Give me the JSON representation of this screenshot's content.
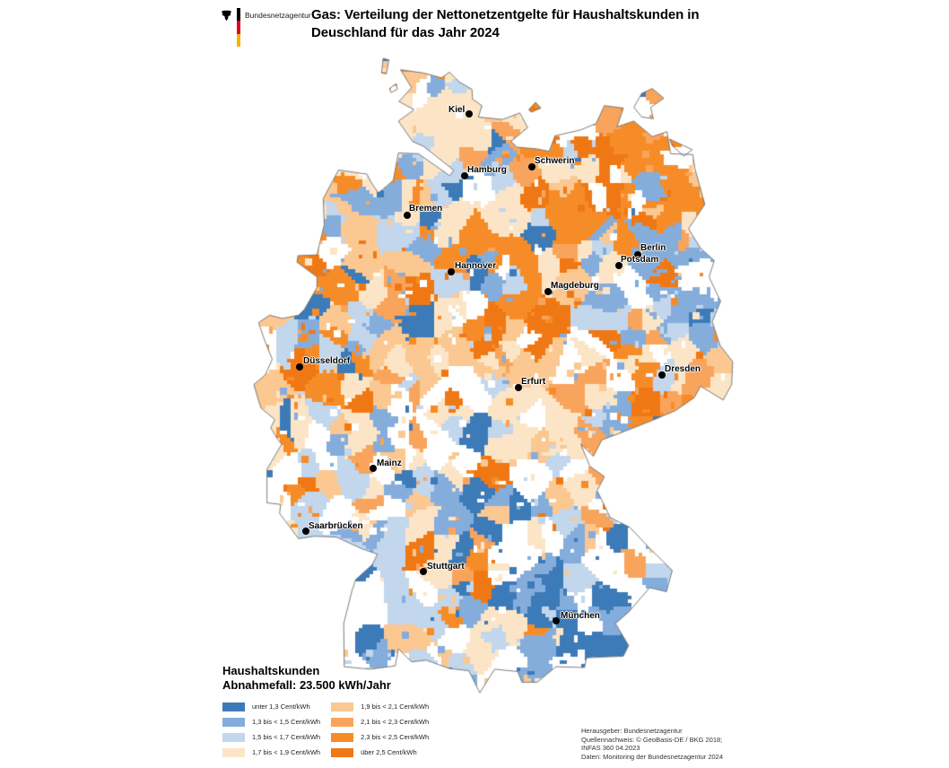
{
  "header": {
    "logo_text": "Bundesnetzagentur",
    "title_line1": "Gas: Verteilung der Nettonetzentgelte für Haushaltskunden in",
    "title_line2": "Deuschland für das Jahr 2024"
  },
  "logo_colors": {
    "black": "#000000",
    "red": "#E2001A",
    "gold": "#F9B200"
  },
  "map": {
    "cities": [
      {
        "name": "Kiel",
        "dot": [
          523,
          127
        ],
        "label": [
          500,
          117
        ]
      },
      {
        "name": "Hamburg",
        "dot": [
          518,
          196
        ],
        "label": [
          521,
          184
        ]
      },
      {
        "name": "Schwerin",
        "dot": [
          593,
          186
        ],
        "label": [
          596,
          174
        ]
      },
      {
        "name": "Bremen",
        "dot": [
          454,
          240
        ],
        "label": [
          456,
          227
        ]
      },
      {
        "name": "Berlin",
        "dot": [
          711,
          284
        ],
        "label": [
          714,
          271
        ]
      },
      {
        "name": "Potsdam",
        "dot": [
          690,
          296
        ],
        "label": [
          692,
          284
        ]
      },
      {
        "name": "Hannover",
        "dot": [
          503,
          303
        ],
        "label": [
          507,
          291
        ]
      },
      {
        "name": "Magdeburg",
        "dot": [
          611,
          325
        ],
        "label": [
          614,
          313
        ]
      },
      {
        "name": "Düsseldorf",
        "dot": [
          334,
          409
        ],
        "label": [
          338,
          397
        ]
      },
      {
        "name": "Dresden",
        "dot": [
          738,
          418
        ],
        "label": [
          741,
          406
        ]
      },
      {
        "name": "Erfurt",
        "dot": [
          578,
          432
        ],
        "label": [
          581,
          420
        ]
      },
      {
        "name": "Mainz",
        "dot": [
          416,
          522
        ],
        "label": [
          420,
          511
        ]
      },
      {
        "name": "Saarbrücken",
        "dot": [
          341,
          592
        ],
        "label": [
          344,
          581
        ]
      },
      {
        "name": "Stuttgart",
        "dot": [
          472,
          637
        ],
        "label": [
          476,
          626
        ]
      },
      {
        "name": "München",
        "dot": [
          620,
          692
        ],
        "label": [
          625,
          681
        ]
      }
    ]
  },
  "legend": {
    "title_line1": "Haushaltskunden",
    "title_line2": "Abnahmefall: 23.500 kWh/Jahr",
    "items": [
      {
        "label": "unter 1,3 Cent/kWh",
        "color": "#3D7BB8"
      },
      {
        "label": "1,3 bis < 1,5 Cent/kWh",
        "color": "#85ADDB"
      },
      {
        "label": "1,5 bis < 1,7 Cent/kWh",
        "color": "#C2D6EC"
      },
      {
        "label": "1,7 bis < 1,9 Cent/kWh",
        "color": "#FCE5C7"
      },
      {
        "label": "1,9 bis < 2,1 Cent/kWh",
        "color": "#FBC891"
      },
      {
        "label": "2,1 bis < 2,3 Cent/kWh",
        "color": "#F9A45C"
      },
      {
        "label": "2,3 bis < 2,5 Cent/kWh",
        "color": "#F68C28"
      },
      {
        "label": "über 2,5 Cent/kWh",
        "color": "#F07814"
      }
    ],
    "no_data_color": "#FFFFFF"
  },
  "attribution": {
    "lines": [
      "Herausgeber: Bundesnetzagentur",
      "Quellennachweis: © GeoBasis-DE / BKG 2018;",
      "INFAS 360   04.2023",
      "Daten: Monitoring der Bundesnetzagentur 2024"
    ]
  }
}
